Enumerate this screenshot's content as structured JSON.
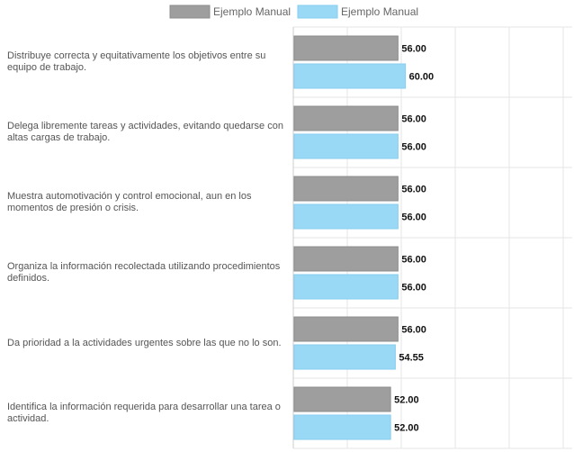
{
  "chart_data": {
    "type": "bar",
    "orientation": "horizontal",
    "categories": [
      "Distribuye correcta y equitativamente los objetivos entre su equipo de trabajo.",
      "Delega libremente tareas y actividades, evitando quedarse con altas cargas de trabajo.",
      "Muestra automotivación y control emocional, aun en los momentos de presión o crisis.",
      "Organiza la información recolectada utilizando procedimientos definidos.",
      "Da prioridad a la actividades urgentes sobre las que no lo son.",
      "Identifica la información requerida para desarrollar una tarea o actividad."
    ],
    "series": [
      {
        "name": "Ejemplo Manual",
        "color": "#9e9e9e",
        "values": [
          56,
          56,
          56,
          56,
          56,
          52
        ],
        "labels": [
          "56.00",
          "56.00",
          "56.00",
          "56.00",
          "56.00",
          "52.00"
        ]
      },
      {
        "name": "Ejemplo Manual",
        "color": "#9ad9f5",
        "values": [
          60,
          56,
          56,
          56,
          54.55,
          52
        ],
        "labels": [
          "60.00",
          "56.00",
          "56.00",
          "56.00",
          "54.55",
          "52.00"
        ]
      }
    ],
    "xlim": [
      0,
      100
    ],
    "grid": true,
    "legend": "top-center"
  }
}
